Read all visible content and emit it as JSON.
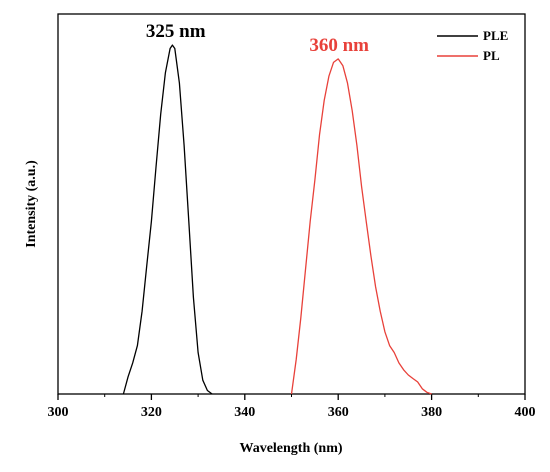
{
  "chart_data": {
    "type": "line",
    "xlabel": "Wavelength (nm)",
    "ylabel": "Intensity (a.u.)",
    "xlim": [
      300,
      400
    ],
    "ylim": [
      0,
      1.1
    ],
    "x_ticks": [
      300,
      320,
      340,
      360,
      380,
      400
    ],
    "y_ticks": "none",
    "grid": false,
    "legend_position": "top-right",
    "series": [
      {
        "name": "PLE",
        "color": "#000000",
        "x": [
          314,
          315,
          316,
          317,
          318,
          319,
          320,
          321,
          322,
          323,
          324,
          324.5,
          325,
          326,
          327,
          328,
          329,
          330,
          331,
          332,
          333
        ],
        "y": [
          0,
          0.05,
          0.09,
          0.14,
          0.24,
          0.37,
          0.5,
          0.66,
          0.81,
          0.93,
          1.0,
          1.01,
          1.0,
          0.9,
          0.72,
          0.5,
          0.28,
          0.12,
          0.04,
          0.01,
          0
        ]
      },
      {
        "name": "PL",
        "color": "#e8413a",
        "x": [
          350,
          351,
          352,
          353,
          354,
          355,
          356,
          357,
          358,
          359,
          360,
          361,
          362,
          363,
          364,
          365,
          366,
          367,
          368,
          369,
          370,
          371,
          372,
          373,
          374,
          375,
          376,
          377,
          378,
          379,
          380
        ],
        "y": [
          0,
          0.1,
          0.22,
          0.36,
          0.5,
          0.62,
          0.75,
          0.85,
          0.92,
          0.96,
          0.97,
          0.95,
          0.9,
          0.82,
          0.72,
          0.6,
          0.5,
          0.4,
          0.31,
          0.24,
          0.18,
          0.14,
          0.12,
          0.09,
          0.07,
          0.055,
          0.045,
          0.035,
          0.015,
          0.005,
          0
        ]
      }
    ],
    "annotations": [
      {
        "text": "325 nm",
        "x": 325,
        "y": 1.01,
        "color": "#000000"
      },
      {
        "text": "360 nm",
        "x": 360,
        "y": 0.97,
        "color": "#e8413a"
      }
    ]
  }
}
